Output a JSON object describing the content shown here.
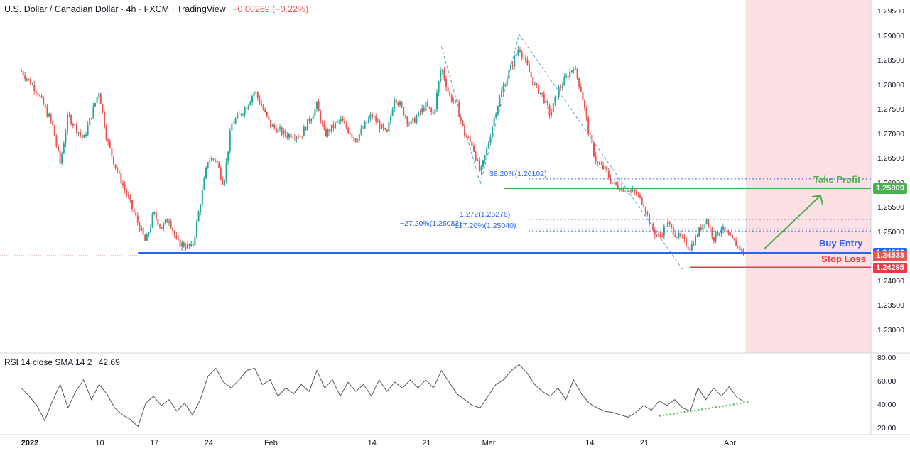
{
  "header": {
    "title": "U.S. Dollar / Canadian Dollar · 4h · FXCM · TradingView",
    "change": "−0.00269 (−0.22%)"
  },
  "colors": {
    "up": "#26a69a",
    "down": "#ef5350",
    "support": "#2962ff",
    "take_profit": "#4caf50",
    "stop_loss": "#f23645",
    "zone": "#fde0e3",
    "rsi_line": "#555555",
    "divergence": "#4caf50"
  },
  "chart_data": {
    "type": "candlestick",
    "symbol": "USDCAD",
    "interval": "4h",
    "ylim": [
      1.2255,
      1.2975
    ],
    "y_ticks": [
      "1.29500",
      "1.29000",
      "1.28500",
      "1.28000",
      "1.27500",
      "1.27000",
      "1.26500",
      "1.26000",
      "1.25500",
      "1.25000",
      "1.24500",
      "1.24000",
      "1.23500",
      "1.23000"
    ],
    "x_ticks": [
      "2022",
      "10",
      "17",
      "24",
      "Feb",
      "14",
      "21",
      "Mar",
      "14",
      "21",
      "Apr"
    ],
    "price_path": [
      {
        "x": "Jan 1",
        "y": 1.283
      },
      {
        "x": "Jan 3",
        "y": 1.279
      },
      {
        "x": "Jan 5",
        "y": 1.272
      },
      {
        "x": "Jan 6",
        "y": 1.264
      },
      {
        "x": "Jan 7",
        "y": 1.274
      },
      {
        "x": "Jan 9",
        "y": 1.269
      },
      {
        "x": "Jan 11",
        "y": 1.279
      },
      {
        "x": "Jan 12",
        "y": 1.269
      },
      {
        "x": "Jan 13",
        "y": 1.264
      },
      {
        "x": "Jan 15",
        "y": 1.256
      },
      {
        "x": "Jan 17",
        "y": 1.248
      },
      {
        "x": "Jan 18",
        "y": 1.254
      },
      {
        "x": "Jan 19",
        "y": 1.251
      },
      {
        "x": "Jan 20",
        "y": 1.253
      },
      {
        "x": "Jan 21",
        "y": 1.248
      },
      {
        "x": "Jan 23",
        "y": 1.247
      },
      {
        "x": "Jan 24",
        "y": 1.256
      },
      {
        "x": "Jan 25",
        "y": 1.265
      },
      {
        "x": "Jan 26",
        "y": 1.265
      },
      {
        "x": "Jan 27",
        "y": 1.26
      },
      {
        "x": "Jan 28",
        "y": 1.272
      },
      {
        "x": "Jan 30",
        "y": 1.276
      },
      {
        "x": "Jan 31",
        "y": 1.279
      },
      {
        "x": "Feb 2",
        "y": 1.272
      },
      {
        "x": "Feb 4",
        "y": 1.27
      },
      {
        "x": "Feb 6",
        "y": 1.27
      },
      {
        "x": "Feb 8",
        "y": 1.276
      },
      {
        "x": "Feb 9",
        "y": 1.27
      },
      {
        "x": "Feb 11",
        "y": 1.273
      },
      {
        "x": "Feb 13",
        "y": 1.269
      },
      {
        "x": "Feb 15",
        "y": 1.274
      },
      {
        "x": "Feb 17",
        "y": 1.27
      },
      {
        "x": "Feb 18",
        "y": 1.278
      },
      {
        "x": "Feb 20",
        "y": 1.272
      },
      {
        "x": "Feb 22",
        "y": 1.276
      },
      {
        "x": "Feb 23",
        "y": 1.274
      },
      {
        "x": "Feb 24",
        "y": 1.284
      },
      {
        "x": "Feb 25",
        "y": 1.278
      },
      {
        "x": "Feb 26",
        "y": 1.276
      },
      {
        "x": "Feb 27",
        "y": 1.27
      },
      {
        "x": "Feb 28",
        "y": 1.268
      },
      {
        "x": "Mar 1",
        "y": 1.262
      },
      {
        "x": "Mar 2",
        "y": 1.268
      },
      {
        "x": "Mar 3",
        "y": 1.275
      },
      {
        "x": "Mar 4",
        "y": 1.28
      },
      {
        "x": "Mar 6",
        "y": 1.288
      },
      {
        "x": "Mar 7",
        "y": 1.284
      },
      {
        "x": "Mar 8",
        "y": 1.28
      },
      {
        "x": "Mar 9",
        "y": 1.278
      },
      {
        "x": "Mar 10",
        "y": 1.274
      },
      {
        "x": "Mar 11",
        "y": 1.279
      },
      {
        "x": "Mar 13",
        "y": 1.284
      },
      {
        "x": "Mar 14",
        "y": 1.279
      },
      {
        "x": "Mar 15",
        "y": 1.27
      },
      {
        "x": "Mar 16",
        "y": 1.264
      },
      {
        "x": "Mar 17",
        "y": 1.263
      },
      {
        "x": "Mar 18",
        "y": 1.26
      },
      {
        "x": "Mar 21",
        "y": 1.258
      },
      {
        "x": "Mar 22",
        "y": 1.256
      },
      {
        "x": "Mar 23",
        "y": 1.251
      },
      {
        "x": "Mar 24",
        "y": 1.249
      },
      {
        "x": "Mar 25",
        "y": 1.252
      },
      {
        "x": "Mar 26",
        "y": 1.25
      },
      {
        "x": "Mar 28",
        "y": 1.247
      },
      {
        "x": "Mar 29",
        "y": 1.25
      },
      {
        "x": "Mar 30",
        "y": 1.253
      },
      {
        "x": "Mar 31",
        "y": 1.249
      },
      {
        "x": "Apr 1",
        "y": 1.251
      },
      {
        "x": "Apr 2",
        "y": 1.249
      },
      {
        "x": "Apr 3",
        "y": 1.2475
      },
      {
        "x": "Apr 4",
        "y": 1.2455
      }
    ],
    "levels": [
      {
        "name": "Take Profit",
        "price": 1.25909,
        "label": "1.25909"
      },
      {
        "name": "Buy Entry",
        "price": 1.24592,
        "label": "1.24592"
      },
      {
        "name": "Current",
        "price": 1.24533,
        "label": "1.24533"
      },
      {
        "name": "Stop Loss",
        "price": 1.24295,
        "label": "1.24295"
      }
    ],
    "fib_labels": [
      {
        "text": "38.20%(1.26102)",
        "price": 1.26102
      },
      {
        "text": "1.272(1.25276)",
        "price": 1.25276
      },
      {
        "text": "−27.20%(1.25082)",
        "price": 1.25082
      },
      {
        "text": "127.20%(1.25040)",
        "price": 1.2504
      }
    ],
    "annotations": {
      "take_profit": "Take Profit",
      "buy_entry": "Buy Entry",
      "stop_loss": "Stop Loss"
    },
    "rsi": {
      "label": "RSI 14 close SMA 14 2",
      "value": "42.69",
      "ylim": [
        15,
        85
      ],
      "y_ticks": [
        "80.00",
        "60.00",
        "40.00",
        "20.00"
      ],
      "series": [
        {
          "x": "Jan 1",
          "y": 55
        },
        {
          "x": "Jan 2",
          "y": 48
        },
        {
          "x": "Jan 3",
          "y": 40
        },
        {
          "x": "Jan 4",
          "y": 27
        },
        {
          "x": "Jan 5",
          "y": 44
        },
        {
          "x": "Jan 6",
          "y": 58
        },
        {
          "x": "Jan 7",
          "y": 38
        },
        {
          "x": "Jan 8",
          "y": 52
        },
        {
          "x": "Jan 9",
          "y": 62
        },
        {
          "x": "Jan 10",
          "y": 45
        },
        {
          "x": "Jan 11",
          "y": 58
        },
        {
          "x": "Jan 12",
          "y": 50
        },
        {
          "x": "Jan 13",
          "y": 38
        },
        {
          "x": "Jan 14",
          "y": 32
        },
        {
          "x": "Jan 15",
          "y": 28
        },
        {
          "x": "Jan 16",
          "y": 22
        },
        {
          "x": "Jan 17",
          "y": 42
        },
        {
          "x": "Jan 18",
          "y": 48
        },
        {
          "x": "Jan 19",
          "y": 40
        },
        {
          "x": "Jan 20",
          "y": 45
        },
        {
          "x": "Jan 21",
          "y": 35
        },
        {
          "x": "Jan 22",
          "y": 42
        },
        {
          "x": "Jan 23",
          "y": 32
        },
        {
          "x": "Jan 24",
          "y": 45
        },
        {
          "x": "Jan 25",
          "y": 65
        },
        {
          "x": "Jan 26",
          "y": 72
        },
        {
          "x": "Jan 27",
          "y": 60
        },
        {
          "x": "Jan 28",
          "y": 55
        },
        {
          "x": "Jan 29",
          "y": 62
        },
        {
          "x": "Jan 30",
          "y": 70
        },
        {
          "x": "Jan 31",
          "y": 72
        },
        {
          "x": "Feb 1",
          "y": 58
        },
        {
          "x": "Feb 2",
          "y": 62
        },
        {
          "x": "Feb 3",
          "y": 48
        },
        {
          "x": "Feb 4",
          "y": 55
        },
        {
          "x": "Feb 5",
          "y": 50
        },
        {
          "x": "Feb 6",
          "y": 58
        },
        {
          "x": "Feb 7",
          "y": 52
        },
        {
          "x": "Feb 8",
          "y": 70
        },
        {
          "x": "Feb 9",
          "y": 55
        },
        {
          "x": "Feb 10",
          "y": 62
        },
        {
          "x": "Feb 11",
          "y": 48
        },
        {
          "x": "Feb 12",
          "y": 60
        },
        {
          "x": "Feb 13",
          "y": 52
        },
        {
          "x": "Feb 14",
          "y": 58
        },
        {
          "x": "Feb 15",
          "y": 48
        },
        {
          "x": "Feb 16",
          "y": 62
        },
        {
          "x": "Feb 17",
          "y": 52
        },
        {
          "x": "Feb 18",
          "y": 60
        },
        {
          "x": "Feb 19",
          "y": 55
        },
        {
          "x": "Feb 20",
          "y": 62
        },
        {
          "x": "Feb 21",
          "y": 55
        },
        {
          "x": "Feb 22",
          "y": 62
        },
        {
          "x": "Feb 23",
          "y": 55
        },
        {
          "x": "Feb 24",
          "y": 70
        },
        {
          "x": "Feb 25",
          "y": 60
        },
        {
          "x": "Feb 26",
          "y": 50
        },
        {
          "x": "Feb 27",
          "y": 45
        },
        {
          "x": "Feb 28",
          "y": 40
        },
        {
          "x": "Mar 1",
          "y": 38
        },
        {
          "x": "Mar 2",
          "y": 48
        },
        {
          "x": "Mar 3",
          "y": 58
        },
        {
          "x": "Mar 4",
          "y": 62
        },
        {
          "x": "Mar 5",
          "y": 70
        },
        {
          "x": "Mar 6",
          "y": 75
        },
        {
          "x": "Mar 7",
          "y": 68
        },
        {
          "x": "Mar 8",
          "y": 58
        },
        {
          "x": "Mar 9",
          "y": 52
        },
        {
          "x": "Mar 10",
          "y": 48
        },
        {
          "x": "Mar 11",
          "y": 55
        },
        {
          "x": "Mar 12",
          "y": 45
        },
        {
          "x": "Mar 13",
          "y": 62
        },
        {
          "x": "Mar 14",
          "y": 50
        },
        {
          "x": "Mar 15",
          "y": 42
        },
        {
          "x": "Mar 16",
          "y": 38
        },
        {
          "x": "Mar 17",
          "y": 35
        },
        {
          "x": "Mar 18",
          "y": 34
        },
        {
          "x": "Mar 19",
          "y": 32
        },
        {
          "x": "Mar 20",
          "y": 30
        },
        {
          "x": "Mar 21",
          "y": 34
        },
        {
          "x": "Mar 22",
          "y": 40
        },
        {
          "x": "Mar 23",
          "y": 36
        },
        {
          "x": "Mar 24",
          "y": 44
        },
        {
          "x": "Mar 25",
          "y": 40
        },
        {
          "x": "Mar 26",
          "y": 45
        },
        {
          "x": "Mar 27",
          "y": 38
        },
        {
          "x": "Mar 28",
          "y": 35
        },
        {
          "x": "Mar 29",
          "y": 55
        },
        {
          "x": "Mar 30",
          "y": 45
        },
        {
          "x": "Mar 31",
          "y": 55
        },
        {
          "x": "Apr 1",
          "y": 48
        },
        {
          "x": "Apr 2",
          "y": 56
        },
        {
          "x": "Apr 3",
          "y": 47
        },
        {
          "x": "Apr 4",
          "y": 43
        }
      ]
    }
  }
}
